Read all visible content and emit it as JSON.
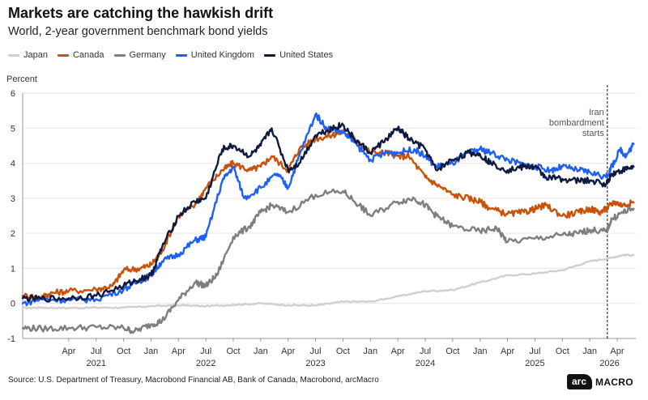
{
  "header": {
    "title": "Markets are catching the hawkish drift",
    "subtitle": "World, 2-year government benchmark bond yields"
  },
  "footer": {
    "source": "Source: U.S. Department of Treasury, Macrobond Financial AB, Bank of Canada, Macrobond, arcMacro",
    "logo_arc": "arc",
    "logo_macro": "MACRO"
  },
  "chart_data": {
    "type": "line",
    "title": "Markets are catching the hawkish drift",
    "subtitle": "World, 2-year government benchmark bond yields",
    "ylabel": "Percent",
    "xlabel": "",
    "ylim": [
      -1,
      6
    ],
    "xlim": [
      2020.83,
      2026.42
    ],
    "grid": true,
    "legend_position": "top-left",
    "yticks": [
      -1,
      0,
      1,
      2,
      3,
      4,
      5,
      6
    ],
    "month_ticks": [
      {
        "x": 2021.25,
        "label": "Apr"
      },
      {
        "x": 2021.5,
        "label": "Jul"
      },
      {
        "x": 2021.75,
        "label": "Oct"
      },
      {
        "x": 2022.0,
        "label": "Jan"
      },
      {
        "x": 2022.25,
        "label": "Apr"
      },
      {
        "x": 2022.5,
        "label": "Jul"
      },
      {
        "x": 2022.75,
        "label": "Oct"
      },
      {
        "x": 2023.0,
        "label": "Jan"
      },
      {
        "x": 2023.25,
        "label": "Apr"
      },
      {
        "x": 2023.5,
        "label": "Jul"
      },
      {
        "x": 2023.75,
        "label": "Oct"
      },
      {
        "x": 2024.0,
        "label": "Jan"
      },
      {
        "x": 2024.25,
        "label": "Apr"
      },
      {
        "x": 2024.5,
        "label": "Jul"
      },
      {
        "x": 2024.75,
        "label": "Oct"
      },
      {
        "x": 2025.0,
        "label": "Jan"
      },
      {
        "x": 2025.25,
        "label": "Apr"
      },
      {
        "x": 2025.5,
        "label": "Jul"
      },
      {
        "x": 2025.75,
        "label": "Oct"
      },
      {
        "x": 2026.0,
        "label": "Jan"
      },
      {
        "x": 2026.25,
        "label": "Apr"
      }
    ],
    "year_labels": [
      {
        "x": 2021.5,
        "label": "2021"
      },
      {
        "x": 2022.5,
        "label": "2022"
      },
      {
        "x": 2023.5,
        "label": "2023"
      },
      {
        "x": 2024.5,
        "label": "2024"
      },
      {
        "x": 2025.5,
        "label": "2025"
      },
      {
        "x": 2026.18,
        "label": "2026"
      }
    ],
    "annotation": {
      "x": 2026.16,
      "lines": [
        "Iran",
        "bombardment",
        "starts"
      ]
    },
    "series": [
      {
        "name": "Japan",
        "color": "#cfcfcf",
        "points": [
          [
            2020.83,
            -0.13
          ],
          [
            2021.0,
            -0.12
          ],
          [
            2021.25,
            -0.13
          ],
          [
            2021.5,
            -0.12
          ],
          [
            2021.75,
            -0.12
          ],
          [
            2022.0,
            -0.08
          ],
          [
            2022.25,
            -0.05
          ],
          [
            2022.5,
            -0.08
          ],
          [
            2022.75,
            -0.04
          ],
          [
            2023.0,
            0.0
          ],
          [
            2023.25,
            -0.05
          ],
          [
            2023.5,
            -0.06
          ],
          [
            2023.75,
            0.05
          ],
          [
            2024.0,
            0.05
          ],
          [
            2024.25,
            0.2
          ],
          [
            2024.5,
            0.35
          ],
          [
            2024.75,
            0.38
          ],
          [
            2025.0,
            0.6
          ],
          [
            2025.25,
            0.8
          ],
          [
            2025.5,
            0.85
          ],
          [
            2025.75,
            0.95
          ],
          [
            2026.0,
            1.2
          ],
          [
            2026.2,
            1.3
          ],
          [
            2026.3,
            1.38
          ],
          [
            2026.4,
            1.38
          ]
        ]
      },
      {
        "name": "Canada",
        "color": "#c9520b",
        "points": [
          [
            2020.83,
            0.22
          ],
          [
            2021.0,
            0.18
          ],
          [
            2021.1,
            0.3
          ],
          [
            2021.25,
            0.35
          ],
          [
            2021.5,
            0.4
          ],
          [
            2021.65,
            0.5
          ],
          [
            2021.75,
            0.95
          ],
          [
            2021.9,
            1.0
          ],
          [
            2022.0,
            1.1
          ],
          [
            2022.1,
            1.5
          ],
          [
            2022.25,
            2.5
          ],
          [
            2022.4,
            2.8
          ],
          [
            2022.5,
            3.3
          ],
          [
            2022.65,
            3.8
          ],
          [
            2022.75,
            4.0
          ],
          [
            2022.9,
            3.8
          ],
          [
            2023.0,
            3.9
          ],
          [
            2023.1,
            4.2
          ],
          [
            2023.25,
            3.8
          ],
          [
            2023.35,
            4.4
          ],
          [
            2023.5,
            4.7
          ],
          [
            2023.65,
            4.8
          ],
          [
            2023.75,
            4.9
          ],
          [
            2023.9,
            4.6
          ],
          [
            2024.0,
            4.3
          ],
          [
            2024.15,
            4.3
          ],
          [
            2024.25,
            4.2
          ],
          [
            2024.35,
            4.2
          ],
          [
            2024.5,
            3.6
          ],
          [
            2024.6,
            3.4
          ],
          [
            2024.75,
            3.1
          ],
          [
            2024.9,
            3.0
          ],
          [
            2025.0,
            2.9
          ],
          [
            2025.1,
            2.7
          ],
          [
            2025.25,
            2.55
          ],
          [
            2025.4,
            2.6
          ],
          [
            2025.5,
            2.7
          ],
          [
            2025.6,
            2.8
          ],
          [
            2025.75,
            2.5
          ],
          [
            2025.9,
            2.6
          ],
          [
            2026.0,
            2.7
          ],
          [
            2026.1,
            2.6
          ],
          [
            2026.17,
            2.75
          ],
          [
            2026.22,
            2.9
          ],
          [
            2026.3,
            2.8
          ],
          [
            2026.4,
            2.88
          ]
        ]
      },
      {
        "name": "Germany",
        "color": "#7c7e82",
        "points": [
          [
            2020.83,
            -0.7
          ],
          [
            2021.0,
            -0.72
          ],
          [
            2021.25,
            -0.7
          ],
          [
            2021.5,
            -0.68
          ],
          [
            2021.75,
            -0.7
          ],
          [
            2021.85,
            -0.8
          ],
          [
            2022.0,
            -0.6
          ],
          [
            2022.1,
            -0.5
          ],
          [
            2022.25,
            0.1
          ],
          [
            2022.4,
            0.6
          ],
          [
            2022.5,
            0.5
          ],
          [
            2022.6,
            0.8
          ],
          [
            2022.75,
            1.9
          ],
          [
            2022.9,
            2.2
          ],
          [
            2023.0,
            2.6
          ],
          [
            2023.1,
            2.8
          ],
          [
            2023.25,
            2.6
          ],
          [
            2023.5,
            3.1
          ],
          [
            2023.75,
            3.2
          ],
          [
            2023.9,
            2.8
          ],
          [
            2024.0,
            2.5
          ],
          [
            2024.25,
            2.9
          ],
          [
            2024.4,
            3.0
          ],
          [
            2024.5,
            2.8
          ],
          [
            2024.6,
            2.5
          ],
          [
            2024.75,
            2.2
          ],
          [
            2025.0,
            2.05
          ],
          [
            2025.15,
            2.15
          ],
          [
            2025.25,
            1.75
          ],
          [
            2025.5,
            1.85
          ],
          [
            2025.75,
            1.95
          ],
          [
            2025.9,
            2.0
          ],
          [
            2026.0,
            2.1
          ],
          [
            2026.15,
            2.05
          ],
          [
            2026.2,
            2.4
          ],
          [
            2026.3,
            2.6
          ],
          [
            2026.4,
            2.7
          ]
        ]
      },
      {
        "name": "United Kingdom",
        "color": "#1f5ff5",
        "points": [
          [
            2020.83,
            0.0
          ],
          [
            2021.0,
            0.12
          ],
          [
            2021.25,
            0.1
          ],
          [
            2021.5,
            0.12
          ],
          [
            2021.75,
            0.4
          ],
          [
            2021.9,
            0.65
          ],
          [
            2022.0,
            0.8
          ],
          [
            2022.1,
            1.2
          ],
          [
            2022.25,
            1.4
          ],
          [
            2022.4,
            1.8
          ],
          [
            2022.5,
            1.9
          ],
          [
            2022.65,
            3.5
          ],
          [
            2022.75,
            3.9
          ],
          [
            2022.85,
            3.0
          ],
          [
            2023.0,
            3.3
          ],
          [
            2023.15,
            3.7
          ],
          [
            2023.25,
            3.3
          ],
          [
            2023.35,
            4.2
          ],
          [
            2023.5,
            5.4
          ],
          [
            2023.6,
            5.0
          ],
          [
            2023.75,
            4.9
          ],
          [
            2023.85,
            4.6
          ],
          [
            2024.0,
            4.1
          ],
          [
            2024.15,
            4.3
          ],
          [
            2024.25,
            4.3
          ],
          [
            2024.4,
            4.4
          ],
          [
            2024.5,
            4.2
          ],
          [
            2024.6,
            3.9
          ],
          [
            2024.75,
            4.0
          ],
          [
            2024.9,
            4.3
          ],
          [
            2025.0,
            4.4
          ],
          [
            2025.1,
            4.3
          ],
          [
            2025.25,
            4.1
          ],
          [
            2025.4,
            3.95
          ],
          [
            2025.5,
            3.9
          ],
          [
            2025.65,
            3.8
          ],
          [
            2025.75,
            3.9
          ],
          [
            2025.9,
            3.8
          ],
          [
            2026.0,
            3.75
          ],
          [
            2026.15,
            3.6
          ],
          [
            2026.2,
            3.9
          ],
          [
            2026.28,
            4.4
          ],
          [
            2026.33,
            4.2
          ],
          [
            2026.4,
            4.55
          ]
        ]
      },
      {
        "name": "United States",
        "color": "#0e1b3e",
        "points": [
          [
            2020.83,
            0.15
          ],
          [
            2021.0,
            0.13
          ],
          [
            2021.25,
            0.15
          ],
          [
            2021.5,
            0.22
          ],
          [
            2021.75,
            0.5
          ],
          [
            2021.9,
            0.7
          ],
          [
            2022.0,
            0.8
          ],
          [
            2022.1,
            1.6
          ],
          [
            2022.25,
            2.5
          ],
          [
            2022.4,
            2.9
          ],
          [
            2022.5,
            3.0
          ],
          [
            2022.65,
            4.4
          ],
          [
            2022.75,
            4.5
          ],
          [
            2022.9,
            4.2
          ],
          [
            2023.0,
            4.5
          ],
          [
            2023.1,
            5.0
          ],
          [
            2023.25,
            3.8
          ],
          [
            2023.35,
            4.0
          ],
          [
            2023.5,
            4.8
          ],
          [
            2023.65,
            5.0
          ],
          [
            2023.75,
            5.1
          ],
          [
            2023.85,
            4.7
          ],
          [
            2024.0,
            4.3
          ],
          [
            2024.15,
            4.7
          ],
          [
            2024.25,
            5.0
          ],
          [
            2024.35,
            4.7
          ],
          [
            2024.5,
            4.4
          ],
          [
            2024.6,
            3.8
          ],
          [
            2024.75,
            4.1
          ],
          [
            2024.9,
            4.3
          ],
          [
            2025.0,
            4.25
          ],
          [
            2025.1,
            4.0
          ],
          [
            2025.25,
            3.8
          ],
          [
            2025.4,
            3.9
          ],
          [
            2025.5,
            3.9
          ],
          [
            2025.6,
            3.6
          ],
          [
            2025.75,
            3.55
          ],
          [
            2025.9,
            3.5
          ],
          [
            2026.0,
            3.5
          ],
          [
            2026.15,
            3.4
          ],
          [
            2026.2,
            3.7
          ],
          [
            2026.3,
            3.8
          ],
          [
            2026.4,
            3.9
          ]
        ]
      }
    ]
  }
}
